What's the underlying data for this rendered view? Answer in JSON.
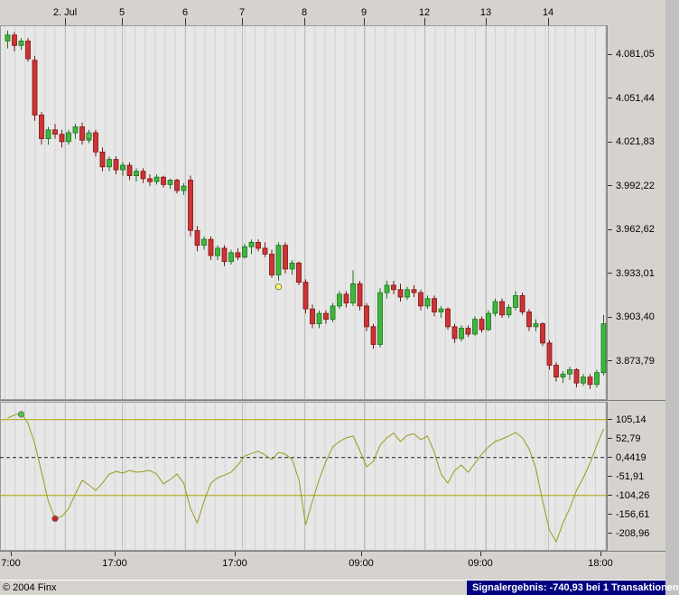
{
  "status_bar": {
    "copyright": "© 2004 Finx",
    "signal_text": "Signalergebnis: -740,93 bei 1 Transaktionen",
    "signal_bg": "#000080",
    "signal_fg": "#ffffff"
  },
  "chart_data": [
    {
      "type": "candlestick",
      "panel": "price",
      "ylim": [
        3847.5,
        4100.6
      ],
      "x_start": 8.5,
      "x_step": 7.5,
      "colors": {
        "up": "#3cb83c",
        "up_border": "#1c701c",
        "down": "#cf3333",
        "down_border": "#7e1414",
        "grid_minor": "#d3d3d3",
        "grid_major": "#bdbdbd",
        "plot_bg": "#e7e7e7"
      },
      "y_axis": {
        "ticks": [
          {
            "value": 4081.05,
            "label": "4.081,05"
          },
          {
            "value": 4051.44,
            "label": "4.051,44"
          },
          {
            "value": 4021.83,
            "label": "4.021,83"
          },
          {
            "value": 3992.22,
            "label": "3.992,22"
          },
          {
            "value": 3962.62,
            "label": "3.962,62"
          },
          {
            "value": 3933.01,
            "label": "3.933,01"
          },
          {
            "value": 3903.4,
            "label": "3.903,40"
          },
          {
            "value": 3873.79,
            "label": "3.873,79"
          }
        ]
      },
      "x_axis": {
        "day_ticks": [
          {
            "label": "2. Jul",
            "x": 72
          },
          {
            "label": "5",
            "x": 135
          },
          {
            "label": "6",
            "x": 205
          },
          {
            "label": "7",
            "x": 268
          },
          {
            "label": "8",
            "x": 337
          },
          {
            "label": "9",
            "x": 403
          },
          {
            "label": "12",
            "x": 470
          },
          {
            "label": "13",
            "x": 538
          },
          {
            "label": "14",
            "x": 607
          }
        ],
        "time_labels": [
          {
            "label": "7:00",
            "x": 12
          },
          {
            "label": "17:00",
            "x": 127
          },
          {
            "label": "17:00",
            "x": 260
          },
          {
            "label": "09:00",
            "x": 400
          },
          {
            "label": "09:00",
            "x": 532
          },
          {
            "label": "18:00",
            "x": 665
          }
        ]
      },
      "ohlc": [
        [
          4090,
          4097,
          4085,
          4094
        ],
        [
          4094,
          4096,
          4083,
          4087
        ],
        [
          4087,
          4092,
          4084,
          4090
        ],
        [
          4090,
          4092,
          4076,
          4078
        ],
        [
          4077,
          4080,
          4036,
          4040
        ],
        [
          4040,
          4042,
          4020,
          4024
        ],
        [
          4024,
          4032,
          4020,
          4030
        ],
        [
          4030,
          4034,
          4024,
          4027
        ],
        [
          4027,
          4030,
          4018,
          4022
        ],
        [
          4022,
          4030,
          4020,
          4028
        ],
        [
          4028,
          4034,
          4024,
          4032
        ],
        [
          4032,
          4035,
          4020,
          4023
        ],
        [
          4023,
          4030,
          4021,
          4028
        ],
        [
          4028,
          4030,
          4012,
          4015
        ],
        [
          4015,
          4018,
          4002,
          4005
        ],
        [
          4005,
          4012,
          4002,
          4010
        ],
        [
          4010,
          4012,
          4000,
          4003
        ],
        [
          4003,
          4008,
          3999,
          4006
        ],
        [
          4006,
          4008,
          3996,
          3999
        ],
        [
          3999,
          4004,
          3995,
          4002
        ],
        [
          4002,
          4004,
          3994,
          3997
        ],
        [
          3997,
          4000,
          3992,
          3995
        ],
        [
          3995,
          4000,
          3993,
          3998
        ],
        [
          3998,
          3999,
          3991,
          3993
        ],
        [
          3993,
          3997,
          3990,
          3996
        ],
        [
          3996,
          3997,
          3987,
          3989
        ],
        [
          3989,
          3994,
          3986,
          3992
        ],
        [
          3996,
          3999,
          3958,
          3962
        ],
        [
          3962,
          3965,
          3948,
          3952
        ],
        [
          3952,
          3958,
          3949,
          3956
        ],
        [
          3956,
          3958,
          3942,
          3945
        ],
        [
          3945,
          3952,
          3942,
          3950
        ],
        [
          3950,
          3952,
          3938,
          3941
        ],
        [
          3941,
          3949,
          3939,
          3947
        ],
        [
          3947,
          3950,
          3942,
          3944
        ],
        [
          3944,
          3953,
          3943,
          3951
        ],
        [
          3951,
          3956,
          3946,
          3954
        ],
        [
          3954,
          3956,
          3948,
          3950
        ],
        [
          3950,
          3954,
          3944,
          3946
        ],
        [
          3946,
          3949,
          3930,
          3932
        ],
        [
          3932,
          3954,
          3928,
          3952
        ],
        [
          3952,
          3954,
          3933,
          3936
        ],
        [
          3936,
          3942,
          3932,
          3940
        ],
        [
          3940,
          3941,
          3925,
          3927
        ],
        [
          3927,
          3929,
          3906,
          3909
        ],
        [
          3909,
          3912,
          3896,
          3899
        ],
        [
          3899,
          3908,
          3896,
          3906
        ],
        [
          3906,
          3908,
          3899,
          3902
        ],
        [
          3902,
          3913,
          3900,
          3911
        ],
        [
          3911,
          3921,
          3909,
          3919
        ],
        [
          3919,
          3921,
          3910,
          3913
        ],
        [
          3913,
          3935,
          3911,
          3926
        ],
        [
          3926,
          3928,
          3908,
          3911
        ],
        [
          3911,
          3913,
          3894,
          3897
        ],
        [
          3897,
          3899,
          3882,
          3885
        ],
        [
          3885,
          3923,
          3883,
          3920
        ],
        [
          3920,
          3928,
          3916,
          3925
        ],
        [
          3925,
          3928,
          3919,
          3922
        ],
        [
          3922,
          3926,
          3914,
          3917
        ],
        [
          3917,
          3924,
          3915,
          3922
        ],
        [
          3922,
          3925,
          3917,
          3920
        ],
        [
          3920,
          3922,
          3908,
          3911
        ],
        [
          3911,
          3918,
          3909,
          3916
        ],
        [
          3916,
          3918,
          3904,
          3907
        ],
        [
          3907,
          3911,
          3903,
          3909
        ],
        [
          3909,
          3910,
          3895,
          3897
        ],
        [
          3897,
          3899,
          3886,
          3889
        ],
        [
          3889,
          3898,
          3887,
          3896
        ],
        [
          3896,
          3898,
          3890,
          3892
        ],
        [
          3892,
          3904,
          3891,
          3902
        ],
        [
          3902,
          3904,
          3893,
          3895
        ],
        [
          3895,
          3908,
          3894,
          3906
        ],
        [
          3906,
          3916,
          3904,
          3914
        ],
        [
          3914,
          3916,
          3903,
          3905
        ],
        [
          3905,
          3912,
          3903,
          3910
        ],
        [
          3910,
          3921,
          3908,
          3918
        ],
        [
          3918,
          3920,
          3905,
          3907
        ],
        [
          3907,
          3909,
          3894,
          3897
        ],
        [
          3897,
          3902,
          3894,
          3899
        ],
        [
          3899,
          3900,
          3884,
          3886
        ],
        [
          3886,
          3888,
          3868,
          3871
        ],
        [
          3871,
          3873,
          3860,
          3863
        ],
        [
          3863,
          3867,
          3859,
          3865
        ],
        [
          3865,
          3870,
          3861,
          3868
        ],
        [
          3868,
          3869,
          3856,
          3859
        ],
        [
          3859,
          3865,
          3857,
          3863
        ],
        [
          3863,
          3865,
          3855,
          3858
        ],
        [
          3858,
          3868,
          3856,
          3866
        ],
        [
          3866,
          3905,
          3864,
          3899
        ]
      ],
      "markers": [
        {
          "index": 12,
          "value": 4026,
          "color": "#44cc44"
        },
        {
          "index": 40,
          "value": 3924,
          "color": "#ffff55"
        }
      ]
    },
    {
      "type": "line",
      "panel": "oscillator",
      "ylim": [
        -256.8,
        154.6
      ],
      "color": "#9a9a1e",
      "y_axis": {
        "ticks": [
          {
            "value": 105.14,
            "label": "105,14"
          },
          {
            "value": 52.79,
            "label": "52,79"
          },
          {
            "value": 0.4419,
            "label": "0,4419"
          },
          {
            "value": -51.91,
            "label": "-51,91"
          },
          {
            "value": -104.26,
            "label": "-104,26"
          },
          {
            "value": -156.61,
            "label": "-156,61"
          },
          {
            "value": -208.96,
            "label": "-208,96"
          }
        ]
      },
      "hlines": [
        {
          "value": 105.14,
          "color": "#a8a800",
          "dash": ""
        },
        {
          "value": 0.4419,
          "color": "#222222",
          "dash": "4 3"
        },
        {
          "value": -104.26,
          "color": "#a8a800",
          "dash": ""
        }
      ],
      "values": [
        110,
        118,
        124,
        95,
        40,
        -40,
        -120,
        -168,
        -162,
        -140,
        -100,
        -62,
        -75,
        -90,
        -70,
        -45,
        -38,
        -42,
        -35,
        -40,
        -38,
        -35,
        -45,
        -72,
        -60,
        -45,
        -70,
        -140,
        -180,
        -120,
        -70,
        -55,
        -48,
        -40,
        -20,
        5,
        12,
        18,
        8,
        -5,
        15,
        10,
        -5,
        -60,
        -185,
        -120,
        -60,
        -10,
        30,
        45,
        55,
        60,
        20,
        -25,
        -10,
        35,
        55,
        68,
        45,
        62,
        66,
        50,
        60,
        15,
        -45,
        -70,
        -35,
        -20,
        -40,
        -15,
        10,
        30,
        45,
        52,
        60,
        70,
        55,
        25,
        -30,
        -120,
        -200,
        -232,
        -180,
        -140,
        -90,
        -55,
        -15,
        35,
        80
      ],
      "markers": [
        {
          "index": 2,
          "value": 120,
          "color": "#44cc44"
        },
        {
          "index": 7,
          "value": -168,
          "color": "#cc2222"
        }
      ]
    }
  ]
}
